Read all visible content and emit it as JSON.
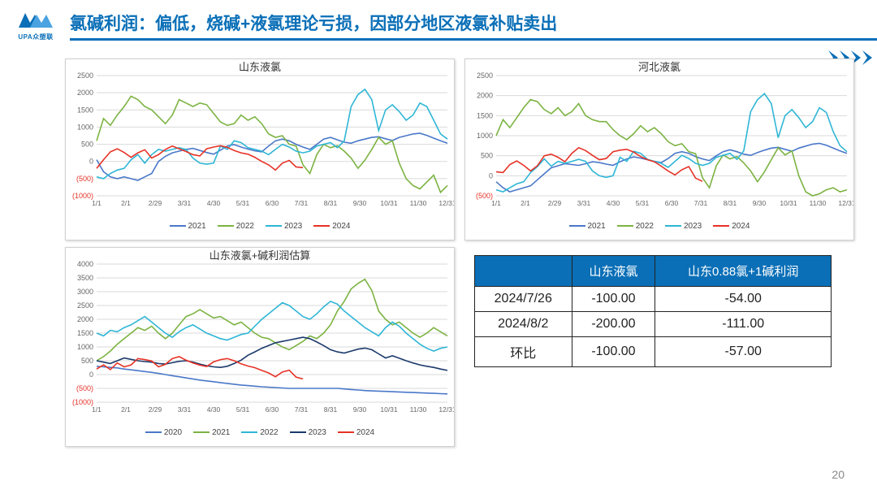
{
  "page": {
    "title": "氯碱利润：偏低，烧碱+液氯理论亏损，因部分地区液氯补贴卖出",
    "page_number": "20",
    "logo_text": "UPA众塑联"
  },
  "colors": {
    "brand": "#0a6fb7",
    "s2020": "#4a78c9",
    "s2021": "#7cb342",
    "s2022": "#2fb6d6",
    "s2023": "#1b3a6b",
    "s2024": "#e63226",
    "grid": "#d9d9d9",
    "axis_text": "#666",
    "neg_tick": "#e63226"
  },
  "charts": {
    "x_labels_12": [
      "1/1",
      "2/1",
      "2/29",
      "3/31",
      "4/30",
      "5/31",
      "6/30",
      "7/31",
      "8/31",
      "9/30",
      "10/31",
      "11/30",
      "12/31"
    ],
    "sd": {
      "title": "山东液氯",
      "ymin": -1000,
      "ymax": 2500,
      "ystep": 500,
      "legend": [
        "2021",
        "2022",
        "2023",
        "2024"
      ],
      "legend_colors": [
        "#4a78c9",
        "#7cb342",
        "#2fb6d6",
        "#e63226"
      ],
      "series": {
        "2021": [
          50,
          -300,
          -450,
          -500,
          -450,
          -500,
          -550,
          -450,
          -350,
          0,
          150,
          250,
          300,
          350,
          380,
          320,
          260,
          210,
          330,
          450,
          490,
          420,
          360,
          310,
          280,
          450,
          600,
          650,
          600,
          500,
          420,
          350,
          500,
          650,
          700,
          630,
          560,
          530,
          600,
          650,
          700,
          720,
          660,
          610,
          700,
          750,
          800,
          820,
          760,
          680,
          600,
          530
        ],
        "2022": [
          600,
          1250,
          1050,
          1350,
          1600,
          1900,
          1800,
          1600,
          1500,
          1300,
          1100,
          1350,
          1800,
          1700,
          1600,
          1700,
          1650,
          1400,
          1150,
          1050,
          1100,
          1350,
          1200,
          1300,
          1100,
          800,
          700,
          750,
          500,
          450,
          -100,
          -350,
          200,
          500,
          400,
          460,
          300,
          100,
          -200,
          40,
          350,
          700,
          500,
          600,
          -50,
          -500,
          -700,
          -800,
          -600,
          -400,
          -900,
          -700
        ],
        "2023": [
          -450,
          -500,
          -350,
          -250,
          -200,
          50,
          200,
          -50,
          200,
          350,
          300,
          350,
          400,
          350,
          100,
          -50,
          -80,
          -50,
          450,
          350,
          600,
          550,
          400,
          350,
          300,
          200,
          350,
          500,
          420,
          300,
          250,
          300,
          450,
          500,
          550,
          400,
          600,
          1600,
          1950,
          2100,
          1800,
          900,
          1500,
          1650,
          1450,
          1200,
          1350,
          1700,
          1600,
          1200,
          800,
          650
        ],
        "2024": [
          -200,
          50,
          280,
          370,
          260,
          120,
          250,
          340,
          100,
          200,
          350,
          450,
          370,
          290,
          200,
          160,
          370,
          420,
          460,
          410,
          320,
          250,
          210,
          120,
          0,
          -100,
          -250,
          -50,
          30,
          -160,
          -180
        ]
      }
    },
    "hb": {
      "title": "河北液氯",
      "ymin": -500,
      "ymax": 2500,
      "ystep": 500,
      "legend": [
        "2021",
        "2022",
        "2023",
        "2024"
      ],
      "legend_colors": [
        "#4a78c9",
        "#7cb342",
        "#2fb6d6",
        "#e63226"
      ],
      "series": {
        "2021": [
          -150,
          -300,
          -400,
          -350,
          -300,
          -250,
          -100,
          50,
          200,
          250,
          300,
          280,
          260,
          300,
          350,
          330,
          290,
          260,
          350,
          420,
          470,
          440,
          400,
          360,
          330,
          430,
          560,
          600,
          560,
          480,
          420,
          380,
          500,
          600,
          650,
          600,
          540,
          510,
          580,
          640,
          690,
          710,
          660,
          610,
          690,
          740,
          790,
          810,
          760,
          690,
          620,
          560
        ],
        "2022": [
          1000,
          1400,
          1200,
          1450,
          1700,
          1900,
          1850,
          1650,
          1550,
          1700,
          1500,
          1600,
          1800,
          1500,
          1400,
          1350,
          1350,
          1150,
          1000,
          900,
          1050,
          1250,
          1100,
          1200,
          1050,
          850,
          750,
          800,
          600,
          550,
          -50,
          -300,
          250,
          520,
          420,
          480,
          320,
          120,
          -150,
          100,
          400,
          700,
          520,
          620,
          0,
          -400,
          -500,
          -450,
          -350,
          -300,
          -400,
          -350
        ],
        "2023": [
          -350,
          -400,
          -300,
          -200,
          -150,
          80,
          230,
          420,
          240,
          360,
          310,
          360,
          410,
          360,
          120,
          0,
          -40,
          0,
          460,
          360,
          610,
          560,
          410,
          360,
          310,
          210,
          360,
          510,
          430,
          310,
          260,
          310,
          460,
          510,
          560,
          410,
          620,
          1600,
          1900,
          2050,
          1800,
          950,
          1500,
          1650,
          1450,
          1200,
          1350,
          1700,
          1580,
          1100,
          750,
          600
        ],
        "2024": [
          100,
          80,
          280,
          370,
          260,
          120,
          250,
          500,
          540,
          460,
          350,
          560,
          700,
          630,
          510,
          400,
          430,
          600,
          640,
          660,
          590,
          480,
          400,
          350,
          240,
          120,
          20,
          150,
          230,
          -60,
          -140
        ]
      }
    },
    "sd_profit": {
      "title": "山东液氯+碱利润估算",
      "ymin": -1000,
      "ymax": 4000,
      "ystep": 500,
      "legend": [
        "2020",
        "2021",
        "2022",
        "2023",
        "2024"
      ],
      "legend_colors": [
        "#4a78c9",
        "#7cb342",
        "#2fb6d6",
        "#1b3a6b",
        "#e63226"
      ],
      "series": {
        "2020": [
          300,
          280,
          260,
          240,
          200,
          170,
          140,
          110,
          80,
          40,
          0,
          -40,
          -80,
          -120,
          -160,
          -200,
          -230,
          -260,
          -290,
          -320,
          -350,
          -380,
          -400,
          -420,
          -440,
          -455,
          -470,
          -485,
          -500,
          -500,
          -500,
          -500,
          -500,
          -500,
          -500,
          -500,
          -520,
          -540,
          -560,
          -580,
          -590,
          -600,
          -610,
          -620,
          -630,
          -640,
          -650,
          -660,
          -670,
          -680,
          -690,
          -700
        ],
        "2021": [
          500,
          650,
          850,
          1100,
          1300,
          1500,
          1700,
          1600,
          1750,
          1500,
          1300,
          1500,
          1800,
          2100,
          2200,
          2350,
          2200,
          2050,
          2100,
          1950,
          1800,
          1900,
          1700,
          1500,
          1350,
          1300,
          1150,
          1000,
          900,
          1050,
          1200,
          1400,
          1300,
          1500,
          1800,
          2300,
          2650,
          3100,
          3300,
          3450,
          3050,
          2300,
          2000,
          1800,
          1900,
          1700,
          1500,
          1350,
          1500,
          1700,
          1550,
          1400
        ],
        "2022": [
          1500,
          1400,
          1600,
          1550,
          1700,
          1800,
          1950,
          2100,
          1900,
          1700,
          1500,
          1350,
          1550,
          1700,
          1800,
          1650,
          1500,
          1400,
          1300,
          1250,
          1350,
          1450,
          1500,
          1750,
          2000,
          2200,
          2400,
          2600,
          2500,
          2300,
          2100,
          2000,
          2200,
          2450,
          2650,
          2550,
          2300,
          2100,
          1900,
          1700,
          1550,
          1400,
          1700,
          1900,
          1750,
          1500,
          1300,
          1100,
          950,
          850,
          950,
          1000
        ],
        "2023": [
          500,
          450,
          400,
          500,
          600,
          550,
          500,
          470,
          450,
          400,
          380,
          430,
          480,
          500,
          450,
          380,
          320,
          280,
          260,
          300,
          400,
          520,
          700,
          820,
          950,
          1050,
          1150,
          1200,
          1250,
          1300,
          1350,
          1300,
          1180,
          1050,
          900,
          820,
          780,
          850,
          920,
          960,
          900,
          750,
          600,
          680,
          590,
          500,
          420,
          350,
          300,
          260,
          200,
          150
        ],
        "2024": [
          200,
          350,
          180,
          420,
          280,
          350,
          580,
          540,
          490,
          280,
          370,
          580,
          650,
          520,
          420,
          340,
          290,
          460,
          540,
          580,
          500,
          390,
          310,
          250,
          150,
          60,
          -80,
          90,
          160,
          -90,
          -160
        ]
      }
    }
  },
  "table": {
    "headers": [
      "",
      "山东液氯",
      "山东0.88氯+1碱利润"
    ],
    "rows": [
      [
        "2024/7/26",
        "-100.00",
        "-54.00"
      ],
      [
        "2024/8/2",
        "-200.00",
        "-111.00"
      ],
      [
        "环比",
        "-100.00",
        "-57.00"
      ]
    ]
  }
}
